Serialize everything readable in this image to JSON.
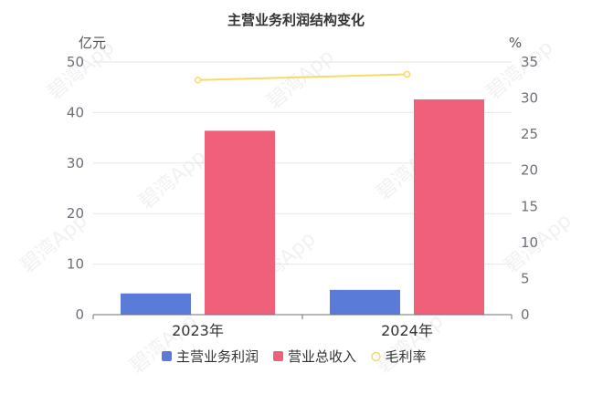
{
  "chart_data": {
    "type": "bar",
    "title": "主营业务利润结构变化",
    "categories": [
      "2023年",
      "2024年"
    ],
    "y_left": {
      "label": "亿元",
      "min": 0,
      "max": 50,
      "ticks": [
        0,
        10,
        20,
        30,
        40,
        50
      ]
    },
    "y_right": {
      "label": "%",
      "min": 0,
      "max": 35,
      "ticks": [
        0,
        5,
        10,
        15,
        20,
        25,
        30,
        35
      ]
    },
    "series": [
      {
        "name": "主营业务利润",
        "kind": "bar",
        "axis": "left",
        "color": "#5b7bd8",
        "values": [
          4.2,
          4.9
        ]
      },
      {
        "name": "营业总收入",
        "kind": "bar",
        "axis": "left",
        "color": "#f0607a",
        "values": [
          36.4,
          42.6
        ]
      },
      {
        "name": "毛利率",
        "kind": "line",
        "axis": "right",
        "color": "#f7d96b",
        "values": [
          32.5,
          33.3
        ]
      }
    ],
    "grid": true,
    "legend_position": "bottom"
  },
  "watermark": "碧湾App"
}
